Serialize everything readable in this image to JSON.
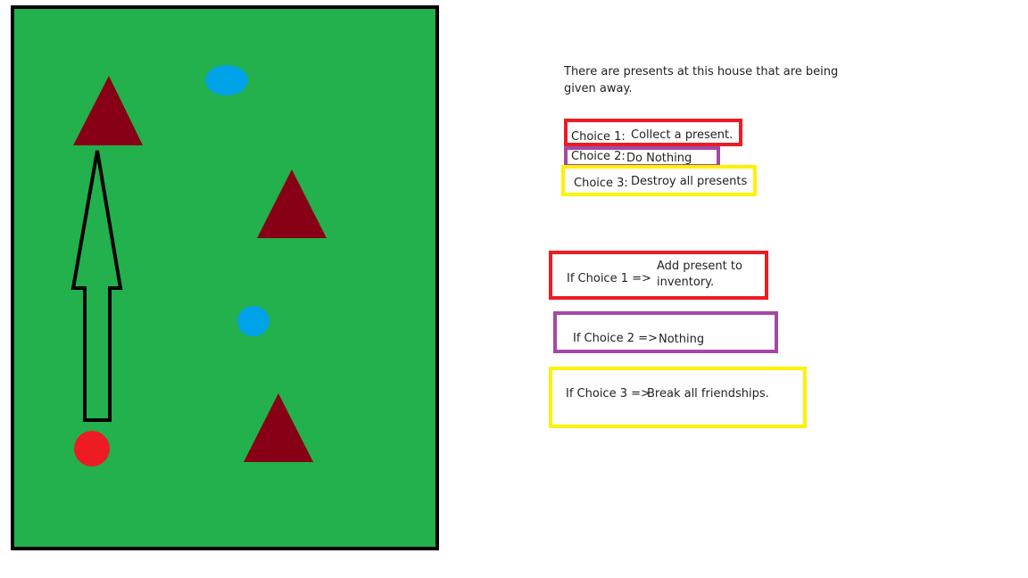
{
  "scene": {
    "description_text": "There are presents at this house that are being given away."
  },
  "choices": [
    {
      "label": "Choice 1:",
      "value": "Collect a present.",
      "color": "#ed1c24"
    },
    {
      "label": "Choice 2:",
      "value": "Do Nothing",
      "color": "#a349a4"
    },
    {
      "label": "Choice 3:",
      "value": "Destroy all presents",
      "color": "#fff200"
    }
  ],
  "outcomes": [
    {
      "condition": "If Choice 1 =>",
      "result": "Add present to inventory.",
      "color": "#ed1c24"
    },
    {
      "condition": "If Choice 2 =>",
      "result": "Nothing",
      "color": "#a349a4"
    },
    {
      "condition": "If Choice 3 =>",
      "result": "Break  all friendships.",
      "color": "#fff200"
    }
  ],
  "map": {
    "background_color": "#22b14c",
    "border_color": "#000000",
    "triangle_color": "#880015",
    "blue_circle_color": "#00a2e8",
    "player_color": "#ed1c24",
    "icons": [
      "house-triangle-icon",
      "present-circle-icon",
      "player-marker-icon",
      "up-arrow-icon"
    ]
  }
}
